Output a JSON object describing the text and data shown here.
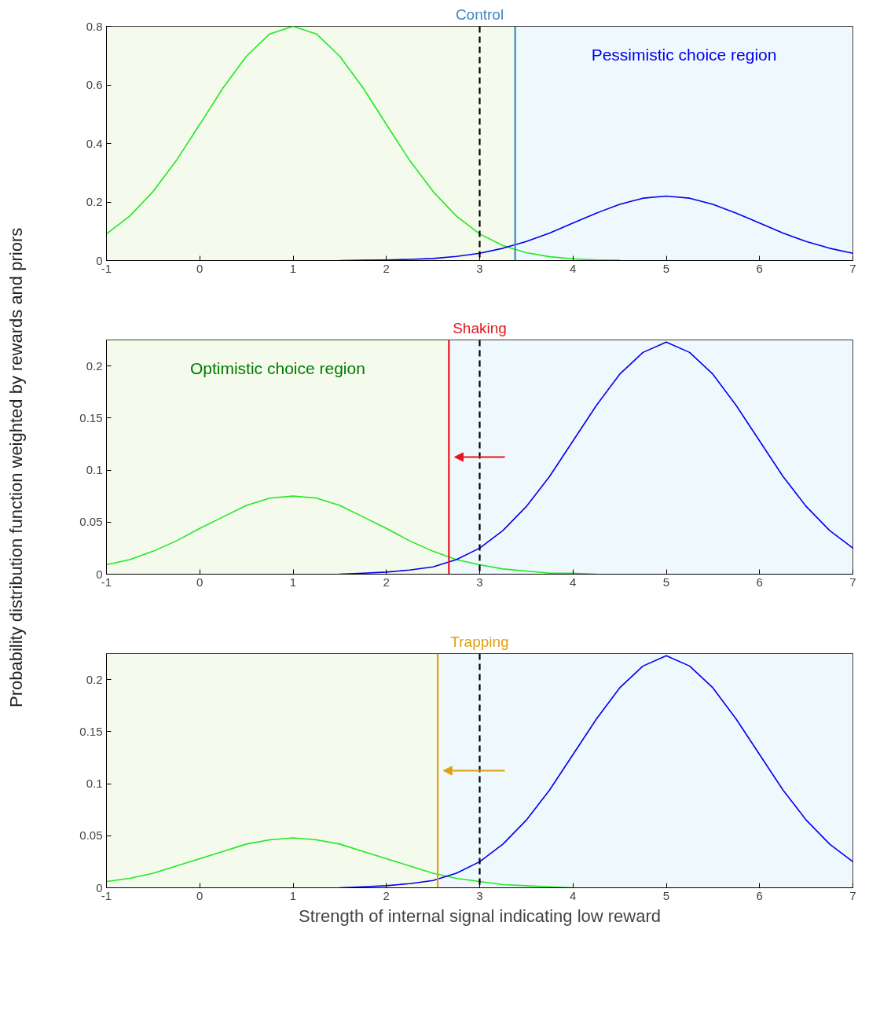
{
  "chart_data": [
    {
      "type": "line",
      "title": "Control",
      "x": [
        -1,
        -0.75,
        -0.5,
        -0.25,
        0,
        0.25,
        0.5,
        0.75,
        1,
        1.25,
        1.5,
        1.75,
        2,
        2.25,
        2.5,
        2.75,
        3,
        3.25,
        3.5,
        3.75,
        4,
        4.25,
        4.5,
        4.75,
        5,
        5.25,
        5.5,
        5.75,
        6,
        6.25,
        6.5,
        6.75,
        7
      ],
      "series": [
        {
          "color": "#22e822",
          "values": [
            0.091,
            0.152,
            0.236,
            0.342,
            0.465,
            0.59,
            0.698,
            0.774,
            0.8,
            0.774,
            0.698,
            0.59,
            0.465,
            0.342,
            0.236,
            0.152,
            0.091,
            0.051,
            0.027,
            0.013,
            0.006,
            0.002,
            0.001,
            null,
            null,
            null,
            null,
            null,
            null,
            null,
            null,
            null,
            null
          ]
        },
        {
          "color": "#0000ee",
          "values": [
            null,
            null,
            null,
            null,
            null,
            null,
            null,
            null,
            null,
            null,
            0.0,
            0.001,
            0.002,
            0.004,
            0.007,
            0.014,
            0.025,
            0.042,
            0.065,
            0.094,
            0.128,
            0.162,
            0.192,
            0.213,
            0.22,
            0.213,
            0.192,
            0.162,
            0.128,
            0.094,
            0.065,
            0.042,
            0.025
          ]
        }
      ],
      "xlim": [
        -1,
        7
      ],
      "ylim": [
        0,
        0.8
      ],
      "xticks": [
        -1,
        0,
        1,
        2,
        3,
        4,
        5,
        6,
        7
      ],
      "yticks": [
        0,
        0.2,
        0.4,
        0.6,
        0.8
      ],
      "bands": [
        {
          "axis": "x",
          "from": -1,
          "to": 3.38,
          "color": "#f4fbec"
        },
        {
          "axis": "x",
          "from": 3.38,
          "to": 7,
          "color": "#eff8fc",
          "label": "Pessimistic choice region"
        }
      ],
      "ref_lines": [
        {
          "axis": "x",
          "value": 3,
          "color": "#000000",
          "line_style": "dashed"
        },
        {
          "axis": "x",
          "value": 3.38,
          "color": "#3d87c4",
          "line_style": "solid"
        }
      ]
    },
    {
      "type": "line",
      "title": "Shaking",
      "ylabel": "Probability distribution function weighted by rewards and priors",
      "x": [
        -1,
        -0.75,
        -0.5,
        -0.25,
        0,
        0.25,
        0.5,
        0.75,
        1,
        1.25,
        1.5,
        1.75,
        2,
        2.25,
        2.5,
        2.75,
        3,
        3.25,
        3.5,
        3.75,
        4,
        4.25,
        4.5,
        4.75,
        5,
        5.25,
        5.5,
        5.75,
        6,
        6.25,
        6.5,
        6.75,
        7
      ],
      "series": [
        {
          "color": "#22e822",
          "values": [
            0.009,
            0.014,
            0.022,
            0.032,
            0.044,
            0.055,
            0.066,
            0.073,
            0.075,
            0.073,
            0.066,
            0.055,
            0.044,
            0.032,
            0.022,
            0.014,
            0.009,
            0.005,
            0.003,
            0.001,
            0.001,
            0.0,
            null,
            null,
            null,
            null,
            null,
            null,
            null,
            null,
            null,
            null,
            null
          ]
        },
        {
          "color": "#0000ee",
          "values": [
            null,
            null,
            null,
            null,
            null,
            null,
            null,
            null,
            null,
            null,
            0.0,
            0.001,
            0.002,
            0.004,
            0.007,
            0.014,
            0.025,
            0.042,
            0.065,
            0.094,
            0.128,
            0.162,
            0.192,
            0.213,
            0.223,
            0.213,
            0.192,
            0.162,
            0.128,
            0.094,
            0.065,
            0.042,
            0.025
          ]
        }
      ],
      "xlim": [
        -1,
        7
      ],
      "ylim": [
        0,
        0.225
      ],
      "xticks": [
        -1,
        0,
        1,
        2,
        3,
        4,
        5,
        6,
        7
      ],
      "yticks": [
        0,
        0.05,
        0.1,
        0.15,
        0.2
      ],
      "bands": [
        {
          "axis": "x",
          "from": -1,
          "to": 2.67,
          "color": "#f4fbec",
          "label": "Optimistic choice region"
        },
        {
          "axis": "x",
          "from": 2.67,
          "to": 7,
          "color": "#eff8fc"
        }
      ],
      "ref_lines": [
        {
          "axis": "x",
          "value": 3,
          "color": "#000000",
          "line_style": "dashed"
        },
        {
          "axis": "x",
          "value": 2.67,
          "color": "#e8141e",
          "line_style": "solid"
        }
      ]
    },
    {
      "type": "line",
      "title": "Trapping",
      "xlabel": "Strength of internal signal indicating low reward",
      "x": [
        -1,
        -0.75,
        -0.5,
        -0.25,
        0,
        0.25,
        0.5,
        0.75,
        1,
        1.25,
        1.5,
        1.75,
        2,
        2.25,
        2.5,
        2.75,
        3,
        3.25,
        3.5,
        3.75,
        4,
        4.25,
        4.5,
        4.75,
        5,
        5.25,
        5.5,
        5.75,
        6,
        6.25,
        6.5,
        6.75,
        7
      ],
      "series": [
        {
          "color": "#22e822",
          "values": [
            0.006,
            0.009,
            0.014,
            0.021,
            0.028,
            0.035,
            0.042,
            0.046,
            0.048,
            0.046,
            0.042,
            0.035,
            0.028,
            0.021,
            0.014,
            0.009,
            0.006,
            0.003,
            0.002,
            0.001,
            0.0,
            null,
            null,
            null,
            null,
            null,
            null,
            null,
            null,
            null,
            null,
            null,
            null
          ]
        },
        {
          "color": "#0000ee",
          "values": [
            null,
            null,
            null,
            null,
            null,
            null,
            null,
            null,
            null,
            null,
            0.0,
            0.001,
            0.002,
            0.004,
            0.007,
            0.014,
            0.025,
            0.042,
            0.065,
            0.094,
            0.128,
            0.162,
            0.192,
            0.213,
            0.223,
            0.213,
            0.192,
            0.162,
            0.128,
            0.094,
            0.065,
            0.042,
            0.025
          ]
        }
      ],
      "xlim": [
        -1,
        7
      ],
      "ylim": [
        0,
        0.225
      ],
      "xticks": [
        -1,
        0,
        1,
        2,
        3,
        4,
        5,
        6,
        7
      ],
      "yticks": [
        0,
        0.05,
        0.1,
        0.15,
        0.2
      ],
      "bands": [
        {
          "axis": "x",
          "from": -1,
          "to": 2.55,
          "color": "#f4fbec"
        },
        {
          "axis": "x",
          "from": 2.55,
          "to": 7,
          "color": "#eff8fc"
        }
      ],
      "ref_lines": [
        {
          "axis": "x",
          "value": 3,
          "color": "#000000",
          "line_style": "dashed"
        },
        {
          "axis": "x",
          "value": 2.55,
          "color": "#e0a010",
          "line_style": "solid"
        }
      ]
    }
  ]
}
